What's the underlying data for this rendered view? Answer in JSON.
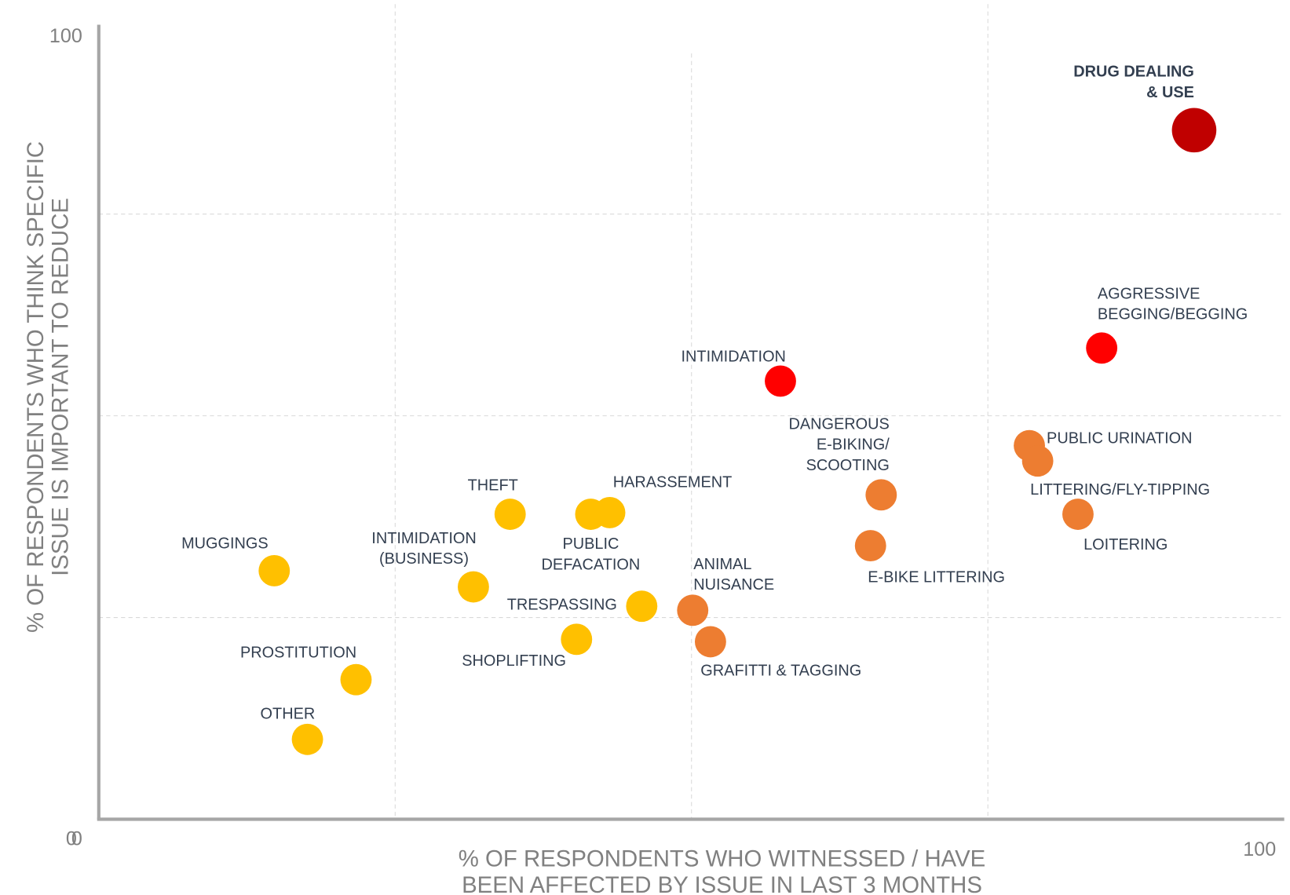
{
  "chart_data": {
    "type": "scatter",
    "x_label": [
      "% OF RESPONDENTS WHO WITNESSED / HAVE",
      "BEEN AFFECTED BY ISSUE IN LAST 3 MONTHS"
    ],
    "y_label": [
      "% OF RESPONDENTS WHO THINK SPECIFIC",
      "ISSUE IS IMPORTANT TO REDUCE"
    ],
    "xlim": [
      0,
      100
    ],
    "ylim": [
      0,
      100
    ],
    "xticks": [
      0,
      100
    ],
    "yticks": [
      0,
      100
    ],
    "xgrid": [
      25,
      50,
      75
    ],
    "ygrid": [
      25,
      50,
      75
    ],
    "points": [
      {
        "label": [
          "DRUG DEALING",
          "& USE"
        ],
        "x": 92.4,
        "y": 85.4,
        "color": "#c00000",
        "bold": true
      },
      {
        "label": [
          "AGGRESSIVE",
          "BEGGING/BEGGING"
        ],
        "x": 84.6,
        "y": 58.4,
        "color": "#ff0000"
      },
      {
        "label": [
          "INTIMIDATION"
        ],
        "x": 57.5,
        "y": 54.3,
        "color": "#ff0000"
      },
      {
        "label": [
          "DANGEROUS",
          "E-BIKING/",
          "SCOOTING"
        ],
        "x": 66.0,
        "y": 40.2,
        "color": "#ed7d31"
      },
      {
        "label": [
          "PUBLIC URINATION"
        ],
        "x": 78.5,
        "y": 46.3,
        "color": "#ed7d31"
      },
      {
        "label": [
          "LITTERING/FLY-TIPPING"
        ],
        "x": 79.2,
        "y": 44.4,
        "color": "#ed7d31"
      },
      {
        "label": [
          "LOITERING"
        ],
        "x": 82.6,
        "y": 37.8,
        "color": "#ed7d31"
      },
      {
        "label": [
          "E-BIKE LITTERING"
        ],
        "x": 65.1,
        "y": 33.9,
        "color": "#ed7d31"
      },
      {
        "label": [
          "ANIMAL",
          "NUISANCE"
        ],
        "x": 50.1,
        "y": 25.9,
        "color": "#ed7d31"
      },
      {
        "label": [
          "GRAFITTI  & TAGGING"
        ],
        "x": 51.6,
        "y": 22.0,
        "color": "#ed7d31"
      },
      {
        "label": [
          "THEFT"
        ],
        "x": 34.7,
        "y": 37.8,
        "color": "#ffc000"
      },
      {
        "label": [
          "HARASSEMENT"
        ],
        "x": 43.1,
        "y": 38.0,
        "color": "#ffc000"
      },
      {
        "label": [
          "PUBLIC",
          "DEFACATION"
        ],
        "x": 41.5,
        "y": 37.8,
        "color": "#ffc000"
      },
      {
        "label": [
          "TRESPASSING"
        ],
        "x": 45.8,
        "y": 26.4,
        "color": "#ffc000"
      },
      {
        "label": [
          "SHOPLIFTING"
        ],
        "x": 40.3,
        "y": 22.3,
        "color": "#ffc000"
      },
      {
        "label": [
          "INTIMIDATION",
          "(BUSINESS)"
        ],
        "x": 31.6,
        "y": 28.8,
        "color": "#ffc000"
      },
      {
        "label": [
          "MUGGINGS"
        ],
        "x": 14.8,
        "y": 30.8,
        "color": "#ffc000"
      },
      {
        "label": [
          "PROSTITUTION"
        ],
        "x": 21.7,
        "y": 17.3,
        "color": "#ffc000"
      },
      {
        "label": [
          "OTHER"
        ],
        "x": 17.6,
        "y": 9.9,
        "color": "#ffc000"
      }
    ]
  }
}
